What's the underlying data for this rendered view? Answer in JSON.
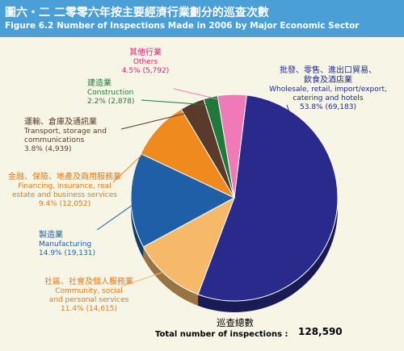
{
  "title_zh": "圖六・二 二零零六年按主要經濟行業劃分的巡查次數",
  "title_en": "Figure 6.2  Number of Inspections Made in 2006 by Major Economic Sector",
  "total": {
    "label_zh": "巡查總數",
    "label_en": "Total number of inspections",
    "value": "128,590"
  },
  "chart_data": {
    "type": "pie",
    "title": "Number of Inspections Made in 2006 by Major Economic Sector",
    "total": 128590,
    "slices": [
      {
        "name_zh": "批發、零售、進出口貿易、飲食及酒店業",
        "name_en": "Wholesale, retail, import/export, catering and hotels",
        "percent": 53.8,
        "count": 69183,
        "label": "53.8% (69,183)",
        "color": "#2a2a8c"
      },
      {
        "name_zh": "社區、社會及個人服務業",
        "name_en": "Community, social and personal services",
        "percent": 11.4,
        "count": 14615,
        "label": "11.4% (14,615)",
        "color": "#f6b96a"
      },
      {
        "name_zh": "製造業",
        "name_en": "Manufacturing",
        "percent": 14.9,
        "count": 19131,
        "label": "14.9% (19,131)",
        "color": "#1f5fa8"
      },
      {
        "name_zh": "金融、保險、地產及商用服務業",
        "name_en": "Financing, insurance, real estate and business services",
        "percent": 9.4,
        "count": 12052,
        "label": "9.4% (12,052)",
        "color": "#ef8a1e"
      },
      {
        "name_zh": "運輸、倉庫及通訊業",
        "name_en": "Transport, storage and communications",
        "percent": 3.8,
        "count": 4939,
        "label": "3.8% (4,939)",
        "color": "#5a3a2a"
      },
      {
        "name_zh": "建造業",
        "name_en": "Construction",
        "percent": 2.2,
        "count": 2878,
        "label": "2.2% (2,878)",
        "color": "#1f7a3a"
      },
      {
        "name_zh": "其他行業",
        "name_en": "Others",
        "percent": 4.5,
        "count": 5792,
        "label": "4.5% (5,792)",
        "color": "#f07ab8"
      }
    ]
  },
  "labels": {
    "wholesale": {
      "zh_line1": "批發、零售、進出口貿易、",
      "zh_line2": "飲食及酒店業",
      "en_line1": "Wholesale, retail, import/export,",
      "en_line2": "catering and hotels",
      "value": "53.8% (69,183)",
      "color": "#1e2a8a"
    },
    "community": {
      "zh": "社區、社會及個人服務業",
      "en_line1": "Community, social",
      "en_line2": "and personal services",
      "value": "11.4% (14,615)",
      "color": "#e07a1a"
    },
    "manufacturing": {
      "zh": "製造業",
      "en": "Manufacturing",
      "value": "14.9% (19,131)",
      "color": "#1f5fa8"
    },
    "financing": {
      "zh": "金融、保險、地產及商用服務業",
      "en_line1": "Financing, insurance, real",
      "en_line2": "estate and business services",
      "value": "9.4% (12,052)",
      "color": "#e07a1a"
    },
    "transport": {
      "zh": "運輸、倉庫及通訊業",
      "en_line1": "Transport, storage and",
      "en_line2": "communications",
      "value": "3.8% (4,939)",
      "color": "#5a3a2a"
    },
    "construction": {
      "zh": "建造業",
      "en": "Construction",
      "value": "2.2% (2,878)",
      "color": "#1f7a3a"
    },
    "others": {
      "zh": "其他行業",
      "en": "Others",
      "value": "4.5% (5,792)",
      "color": "#e0207a"
    }
  }
}
